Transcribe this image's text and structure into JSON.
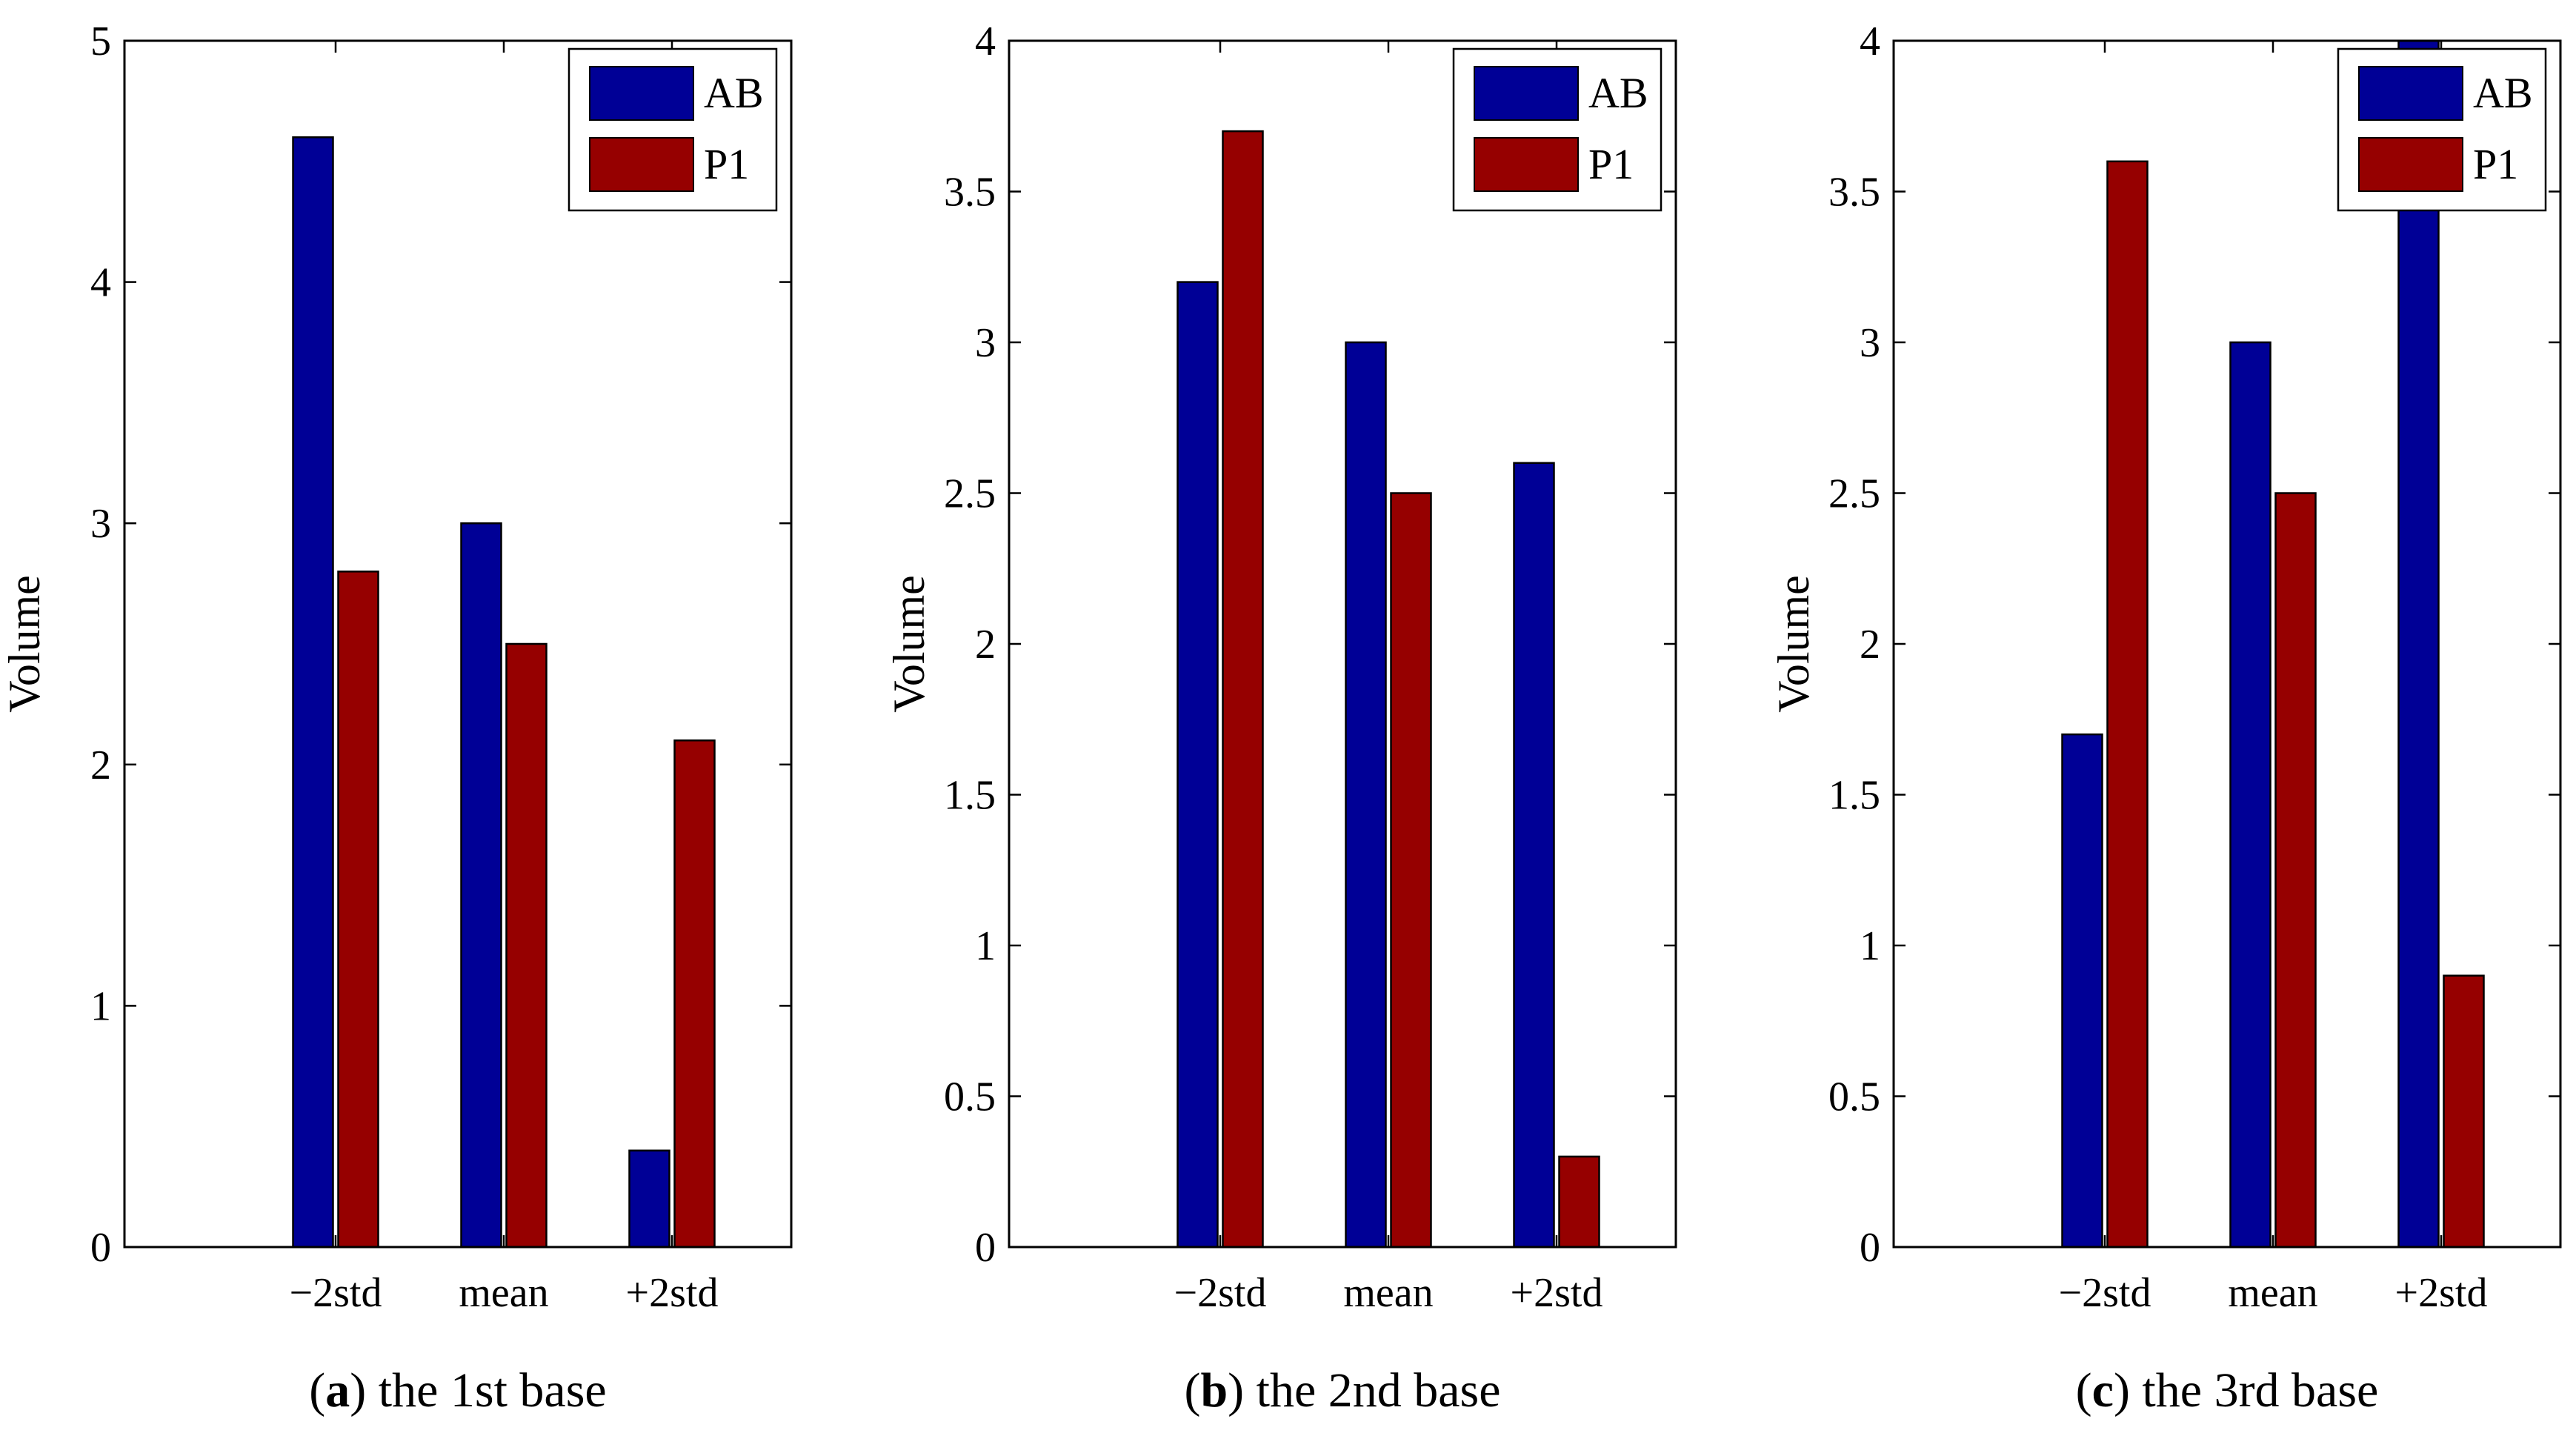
{
  "colors": {
    "ab": "#000096",
    "p1": "#960000",
    "axis": "#000000",
    "background": "#ffffff"
  },
  "chart_data": [
    {
      "type": "bar",
      "caption_letter": "a",
      "caption_text": " the 1st base",
      "ylabel": "Volume",
      "xlabel": "",
      "categories": [
        "−2std",
        "mean",
        "+2std"
      ],
      "ylim": [
        0,
        5
      ],
      "yticks": [
        0,
        1,
        2,
        3,
        4,
        5
      ],
      "ytick_labels": [
        "0",
        "1",
        "2",
        "3",
        "4",
        "5"
      ],
      "legend_position": "top-right",
      "series": [
        {
          "name": "AB",
          "values": [
            4.6,
            3.0,
            0.4
          ]
        },
        {
          "name": "P1",
          "values": [
            2.8,
            2.5,
            2.1
          ]
        }
      ]
    },
    {
      "type": "bar",
      "caption_letter": "b",
      "caption_text": " the 2nd base",
      "ylabel": "Volume",
      "xlabel": "",
      "categories": [
        "−2std",
        "mean",
        "+2std"
      ],
      "ylim": [
        0,
        4
      ],
      "yticks": [
        0,
        0.5,
        1,
        1.5,
        2,
        2.5,
        3,
        3.5,
        4
      ],
      "ytick_labels": [
        "0",
        "0.5",
        "1",
        "1.5",
        "2",
        "2.5",
        "3",
        "3.5",
        "4"
      ],
      "legend_position": "top-right",
      "series": [
        {
          "name": "AB",
          "values": [
            3.2,
            3.0,
            2.6
          ]
        },
        {
          "name": "P1",
          "values": [
            3.7,
            2.5,
            0.3
          ]
        }
      ]
    },
    {
      "type": "bar",
      "caption_letter": "c",
      "caption_text": " the 3rd base",
      "ylabel": "Volume",
      "xlabel": "",
      "categories": [
        "−2std",
        "mean",
        "+2std"
      ],
      "ylim": [
        0,
        4
      ],
      "yticks": [
        0,
        0.5,
        1,
        1.5,
        2,
        2.5,
        3,
        3.5,
        4
      ],
      "ytick_labels": [
        "0",
        "0.5",
        "1",
        "1.5",
        "2",
        "2.5",
        "3",
        "3.5",
        "4"
      ],
      "legend_position": "top-right",
      "series": [
        {
          "name": "AB",
          "values": [
            1.7,
            3.0,
            4.0
          ]
        },
        {
          "name": "P1",
          "values": [
            3.6,
            2.5,
            0.9
          ]
        }
      ]
    }
  ]
}
